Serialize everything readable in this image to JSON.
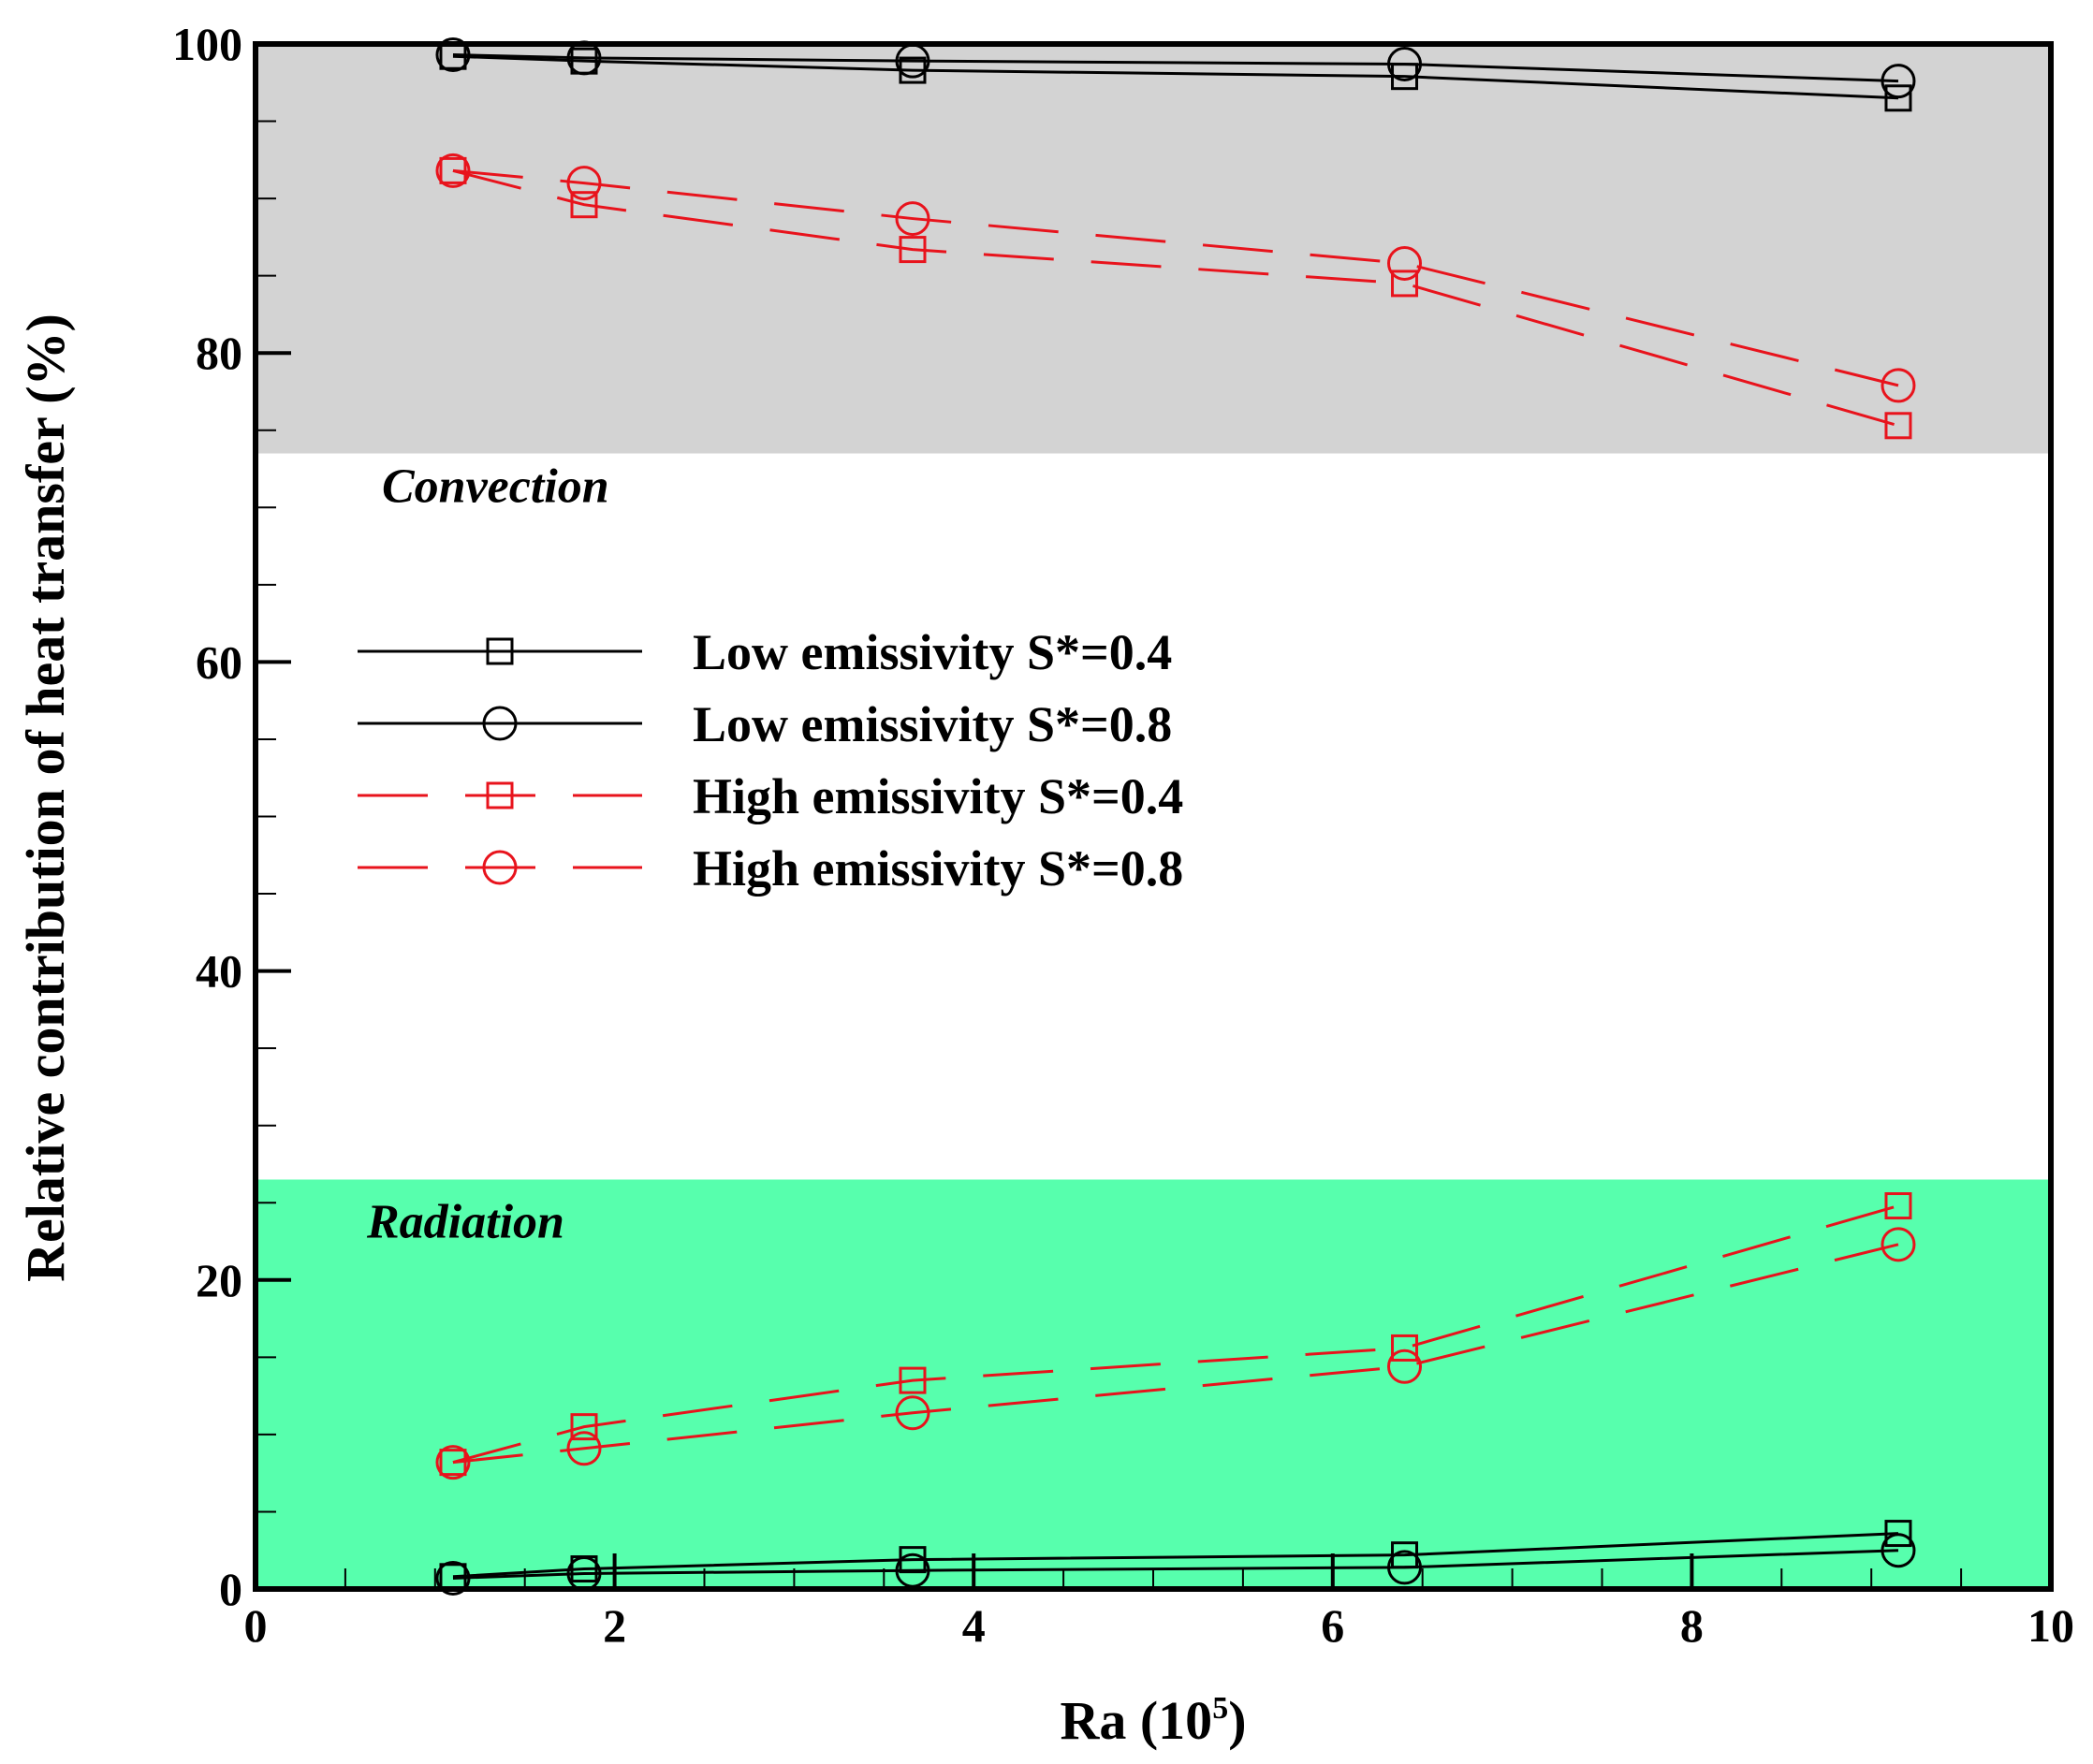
{
  "chart_data": {
    "type": "line",
    "title": "",
    "xlabel": "Ra (10",
    "xlabel_sup": "5",
    "xlabel_close": ")",
    "ylabel": "Relative contribution of heat transfer (%)",
    "xlim": [
      0,
      10
    ],
    "ylim": [
      0,
      100
    ],
    "x_ticks": [
      0,
      2,
      4,
      6,
      8,
      10
    ],
    "y_ticks": [
      0,
      20,
      40,
      60,
      80,
      100
    ],
    "regions": [
      {
        "name": "Convection",
        "y_from": 73.5,
        "y_to": 100,
        "color": "#d3d3d3"
      },
      {
        "name": "Radiation",
        "y_from": 0,
        "y_to": 26.5,
        "color": "#57ffad"
      }
    ],
    "x": [
      1.1,
      1.83,
      3.66,
      6.4,
      9.15
    ],
    "series": [
      {
        "name": "Low emissivity S*=0.4",
        "group": "convection",
        "values": [
          99.2,
          98.9,
          98.3,
          97.9,
          96.5
        ],
        "marker": "square",
        "dash": "solid",
        "color": "#000000"
      },
      {
        "name": "Low emissivity S*=0.8",
        "group": "convection",
        "values": [
          99.3,
          99.1,
          98.9,
          98.7,
          97.6
        ],
        "marker": "circle",
        "dash": "solid",
        "color": "#000000"
      },
      {
        "name": "High emissivity S*=0.4",
        "group": "convection",
        "values": [
          91.8,
          89.6,
          86.7,
          84.5,
          75.3
        ],
        "marker": "square",
        "dash": "dashed",
        "color": "#e8131c"
      },
      {
        "name": "High emissivity S*=0.8",
        "group": "convection",
        "values": [
          91.8,
          91.0,
          88.7,
          85.8,
          77.9
        ],
        "marker": "circle",
        "dash": "dashed",
        "color": "#e8131c"
      },
      {
        "name": "Low emissivity S*=0.4",
        "group": "radiation",
        "values": [
          0.8,
          1.3,
          1.9,
          2.2,
          3.6
        ],
        "marker": "square",
        "dash": "solid",
        "color": "#000000"
      },
      {
        "name": "Low emissivity S*=0.8",
        "group": "radiation",
        "values": [
          0.7,
          1.0,
          1.2,
          1.4,
          2.5
        ],
        "marker": "circle",
        "dash": "solid",
        "color": "#000000"
      },
      {
        "name": "High emissivity S*=0.4",
        "group": "radiation",
        "values": [
          8.2,
          10.5,
          13.5,
          15.6,
          24.8
        ],
        "marker": "square",
        "dash": "dashed",
        "color": "#e8131c"
      },
      {
        "name": "High emissivity S*=0.8",
        "group": "radiation",
        "values": [
          8.2,
          9.1,
          11.4,
          14.4,
          22.3
        ],
        "marker": "circle",
        "dash": "dashed",
        "color": "#e8131c"
      }
    ],
    "legend": {
      "placement": "center-left",
      "entries": [
        {
          "label": "Low emissivity S*=0.4",
          "marker": "square",
          "dash": "solid",
          "color": "#000000"
        },
        {
          "label": "Low emissivity S*=0.8",
          "marker": "circle",
          "dash": "solid",
          "color": "#000000"
        },
        {
          "label": "High emissivity S*=0.4",
          "marker": "square",
          "dash": "dashed",
          "color": "#e8131c"
        },
        {
          "label": "High emissivity S*=0.8",
          "marker": "circle",
          "dash": "dashed",
          "color": "#e8131c"
        }
      ]
    }
  }
}
